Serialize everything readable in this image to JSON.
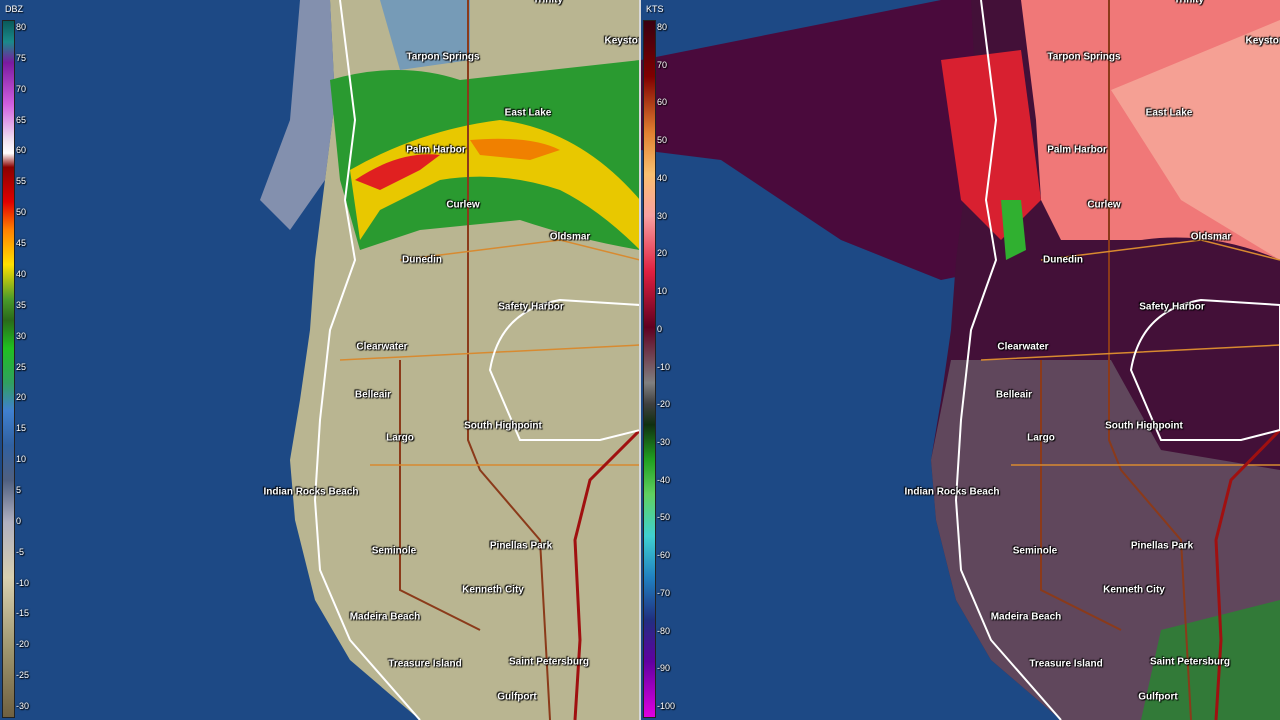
{
  "panels": [
    {
      "unit": "DBZ",
      "scale": [
        80,
        75,
        70,
        65,
        60,
        55,
        50,
        45,
        40,
        35,
        30,
        25,
        20,
        15,
        10,
        5,
        0,
        -5,
        -10,
        -15,
        -20,
        -25,
        -30
      ],
      "places": [
        "Trinity",
        "Tarpon Springs",
        "Keystone",
        "East Lake",
        "Palm Harbor",
        "Curlew",
        "Oldsmar",
        "Dunedin",
        "Safety Harbor",
        "Clearwater",
        "Belleair",
        "South Highpoint",
        "Largo",
        "Indian Rocks Beach",
        "Seminole",
        "Pinellas Park",
        "Kenneth City",
        "Madeira Beach",
        "Treasure Island",
        "Saint Petersburg",
        "Gulfport"
      ]
    },
    {
      "unit": "KTS",
      "scale": [
        80,
        70,
        60,
        50,
        40,
        30,
        20,
        10,
        0,
        -10,
        -20,
        -30,
        -40,
        -50,
        -60,
        -70,
        -80,
        -90,
        -100
      ],
      "places": [
        "Trinity",
        "Tarpon Springs",
        "Keystone",
        "East Lake",
        "Palm Harbor",
        "Curlew",
        "Oldsmar",
        "Dunedin",
        "Safety Harbor",
        "Clearwater",
        "Belleair",
        "South Highpoint",
        "Largo",
        "Indian Rocks Beach",
        "Seminole",
        "Pinellas Park",
        "Kenneth City",
        "Madeira Beach",
        "Treasure Island",
        "Saint Petersburg",
        "Gulfport"
      ]
    }
  ]
}
